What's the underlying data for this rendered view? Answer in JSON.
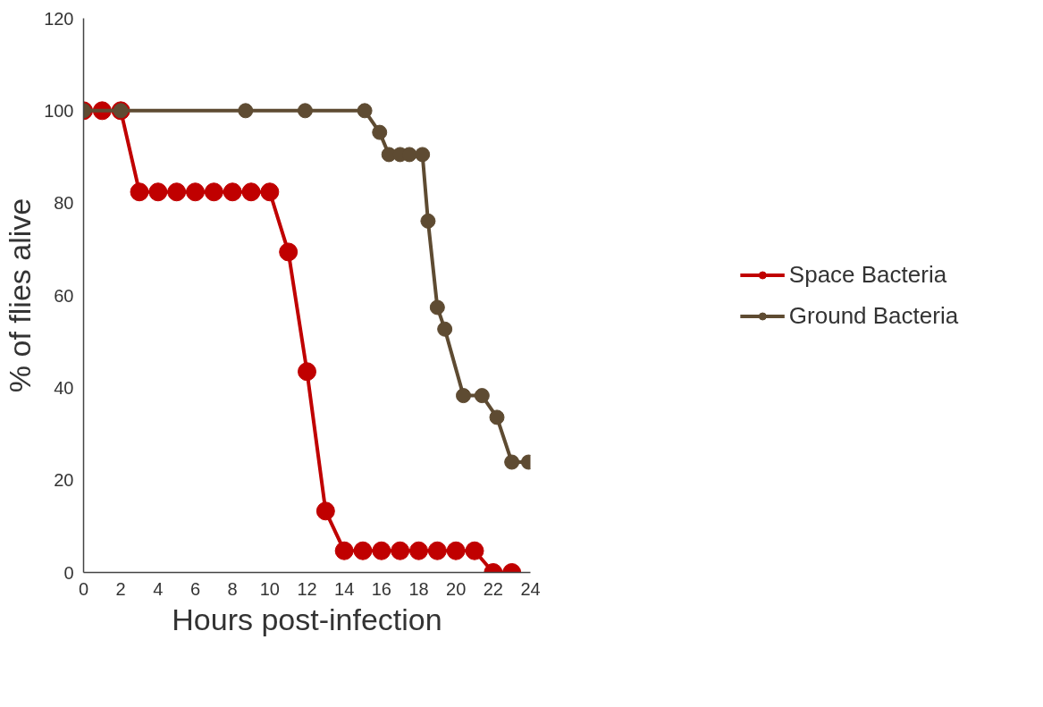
{
  "chart_data": {
    "type": "line",
    "xlabel": "Hours post-infection",
    "ylabel": "% of flies alive",
    "xlim": [
      0,
      24
    ],
    "ylim": [
      0,
      120
    ],
    "xticks": [
      0,
      2,
      4,
      6,
      8,
      10,
      12,
      14,
      16,
      18,
      20,
      22,
      24
    ],
    "yticks": [
      0,
      20,
      40,
      60,
      80,
      100,
      120
    ],
    "grid": false,
    "legend": "right",
    "marker": "circle",
    "line_style": "solid",
    "series": [
      {
        "name": "Space Bacteria",
        "color": "#c00000",
        "x": [
          0,
          1,
          2,
          3,
          4,
          5,
          6,
          7,
          8,
          9,
          10,
          11,
          12,
          13,
          14,
          15,
          16,
          17,
          18,
          19,
          20,
          21,
          22,
          23
        ],
        "values": [
          100,
          100,
          100,
          82.4,
          82.4,
          82.4,
          82.4,
          82.4,
          82.4,
          82.4,
          82.4,
          69.4,
          43.5,
          13.3,
          4.7,
          4.7,
          4.7,
          4.7,
          4.7,
          4.7,
          4.7,
          4.7,
          0,
          0
        ]
      },
      {
        "name": "Ground Bacteria",
        "color": "#5e4b32",
        "x": [
          0,
          2,
          8.7,
          11.9,
          15.1,
          15.9,
          16.4,
          17,
          17.5,
          18.2,
          18.5,
          19,
          19.4,
          20.4,
          21.4,
          22.2,
          23,
          23.9
        ],
        "values": [
          100,
          100,
          100,
          100,
          100,
          95.3,
          90.5,
          90.5,
          90.5,
          90.5,
          76.1,
          57.4,
          52.7,
          38.3,
          38.3,
          33.6,
          23.9,
          23.9
        ]
      }
    ]
  }
}
